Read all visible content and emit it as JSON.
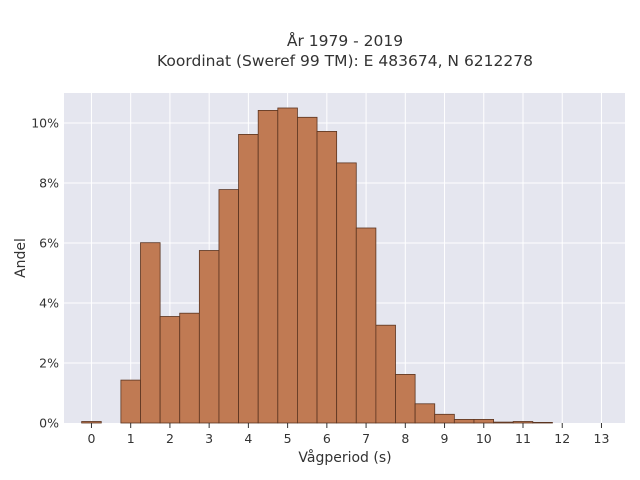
{
  "chart_data": {
    "type": "bar",
    "title_lines": [
      "År 1979 - 2019",
      "Koordinat (Sweref 99 TM): E 483674, N 6212278"
    ],
    "xlabel": "Vågperiod (s)",
    "ylabel": "Andel",
    "bin_width": 0.5,
    "xlim": [
      -0.7,
      13.6
    ],
    "ylim": [
      0,
      0.11
    ],
    "x_ticks": [
      0,
      1,
      2,
      3,
      4,
      5,
      6,
      7,
      8,
      9,
      10,
      11,
      12,
      13
    ],
    "x_tick_labels": [
      "0",
      "1",
      "2",
      "3",
      "4",
      "5",
      "6",
      "7",
      "8",
      "9",
      "10",
      "11",
      "12",
      "13"
    ],
    "y_ticks": [
      0,
      0.02,
      0.04,
      0.06,
      0.08,
      0.1
    ],
    "y_tick_labels": [
      "0%",
      "2%",
      "4%",
      "6%",
      "8%",
      "10%"
    ],
    "grid": true,
    "legend": "none",
    "bins": [
      {
        "x0": -0.25,
        "value": 0.0005
      },
      {
        "x0": 0.75,
        "value": 0.0143
      },
      {
        "x0": 1.25,
        "value": 0.0601
      },
      {
        "x0": 1.75,
        "value": 0.0355
      },
      {
        "x0": 2.25,
        "value": 0.0366
      },
      {
        "x0": 2.75,
        "value": 0.0575
      },
      {
        "x0": 3.25,
        "value": 0.0778
      },
      {
        "x0": 3.75,
        "value": 0.0962
      },
      {
        "x0": 4.25,
        "value": 0.1042
      },
      {
        "x0": 4.75,
        "value": 0.105
      },
      {
        "x0": 5.25,
        "value": 0.1019
      },
      {
        "x0": 5.75,
        "value": 0.0972
      },
      {
        "x0": 6.25,
        "value": 0.0867
      },
      {
        "x0": 6.75,
        "value": 0.065
      },
      {
        "x0": 7.25,
        "value": 0.0326
      },
      {
        "x0": 7.75,
        "value": 0.0162
      },
      {
        "x0": 8.25,
        "value": 0.0064
      },
      {
        "x0": 8.75,
        "value": 0.0029
      },
      {
        "x0": 9.25,
        "value": 0.0012
      },
      {
        "x0": 9.75,
        "value": 0.0012
      },
      {
        "x0": 10.25,
        "value": 0.0003
      },
      {
        "x0": 10.75,
        "value": 0.0005
      },
      {
        "x0": 11.25,
        "value": 0.0002
      }
    ]
  },
  "colors": {
    "plot_background": "#e5e6ef",
    "grid": "#ffffff",
    "bar_fill": "#c07a53",
    "bar_edge": "#5a3420",
    "text": "#333333"
  }
}
